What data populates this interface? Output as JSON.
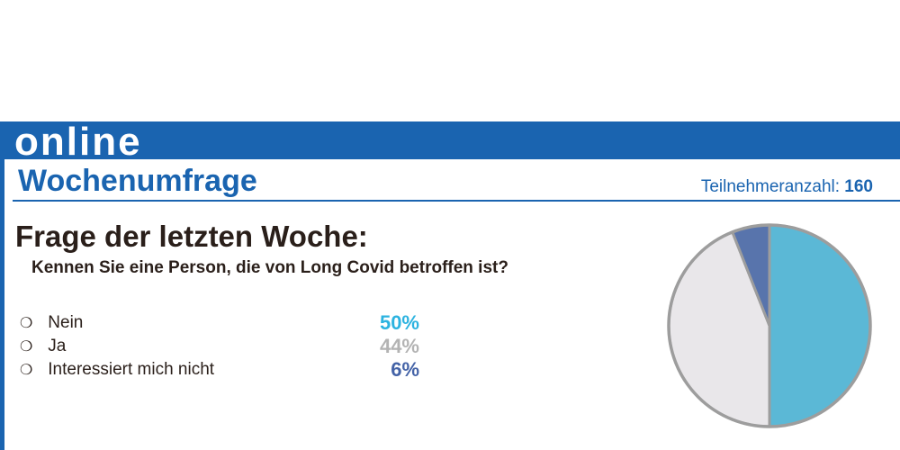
{
  "header": {
    "brand": "online",
    "section_title": "Wochenumfrage",
    "participants_label": "Teilnehmeranzahl:",
    "participants_count": "160"
  },
  "question": {
    "heading": "Frage der letzten Woche:",
    "text": "Kennen Sie eine Person, die von Long Covid betroffen ist?"
  },
  "answers": [
    {
      "bullet": "❍",
      "label": "Nein",
      "percent_label": "50%",
      "color": "#2cb3e0"
    },
    {
      "bullet": "❍",
      "label": "Ja",
      "percent_label": "44%",
      "color": "#b3b3b3"
    },
    {
      "bullet": "❍",
      "label": "Interessiert mich nicht",
      "percent_label": "6%",
      "color": "#4463a7"
    }
  ],
  "chart_data": {
    "type": "pie",
    "title": "",
    "categories": [
      "Nein",
      "Ja",
      "Interessiert mich nicht"
    ],
    "values": [
      50,
      44,
      6
    ],
    "unit": "%",
    "slice_colors": [
      "#5bb8d6",
      "#e9e7ea",
      "#5874ac"
    ],
    "outline_color": "#9d9d9d",
    "start": "12 o'clock, clockwise"
  }
}
